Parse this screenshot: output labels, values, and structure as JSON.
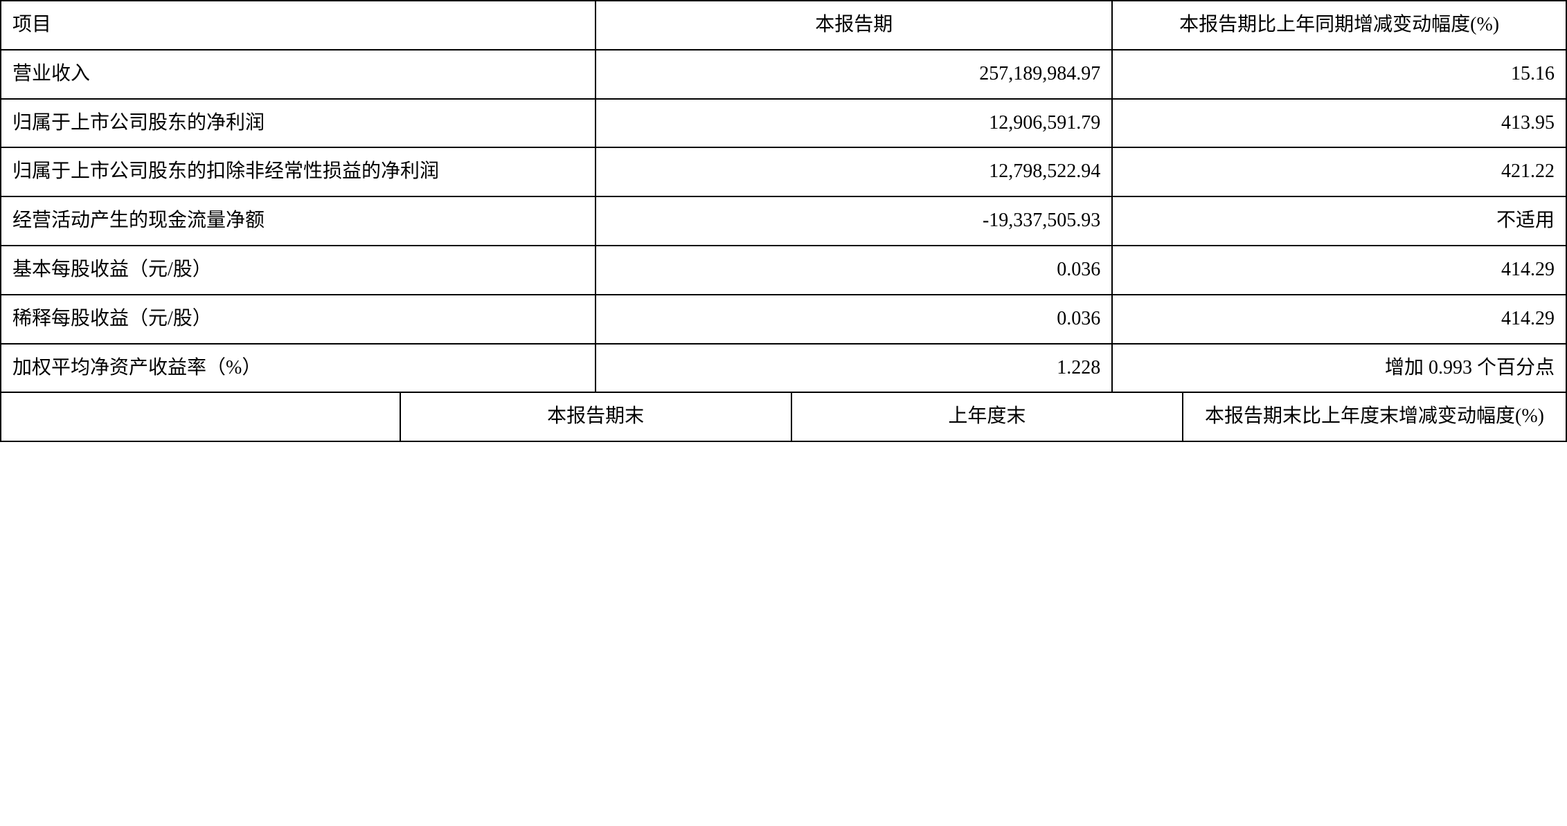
{
  "table1": {
    "headers": {
      "col1": "项目",
      "col2": "本报告期",
      "col3": "本报告期比上年同期增减变动幅度(%)"
    },
    "rows": [
      {
        "label": "营业收入",
        "value": "257,189,984.97",
        "change": "15.16"
      },
      {
        "label": "归属于上市公司股东的净利润",
        "value": "12,906,591.79",
        "change": "413.95"
      },
      {
        "label": "归属于上市公司股东的扣除非经常性损益的净利润",
        "value": "12,798,522.94",
        "change": "421.22"
      },
      {
        "label": "经营活动产生的现金流量净额",
        "value": "-19,337,505.93",
        "change": "不适用"
      },
      {
        "label": "基本每股收益（元/股）",
        "value": "0.036",
        "change": "414.29"
      },
      {
        "label": "稀释每股收益（元/股）",
        "value": "0.036",
        "change": "414.29"
      },
      {
        "label": "加权平均净资产收益率（%）",
        "value": "1.228",
        "change": "增加 0.993 个百分点"
      }
    ]
  },
  "table2": {
    "headers": {
      "col1": "",
      "col2": "本报告期末",
      "col3": "上年度末",
      "col4": "本报告期末比上年度末增减变动幅度(%)"
    }
  },
  "styling": {
    "background_color": "#ffffff",
    "border_color": "#000000",
    "text_color": "#000000",
    "font_family": "SimSun",
    "font_size": 28,
    "border_width": 2
  }
}
